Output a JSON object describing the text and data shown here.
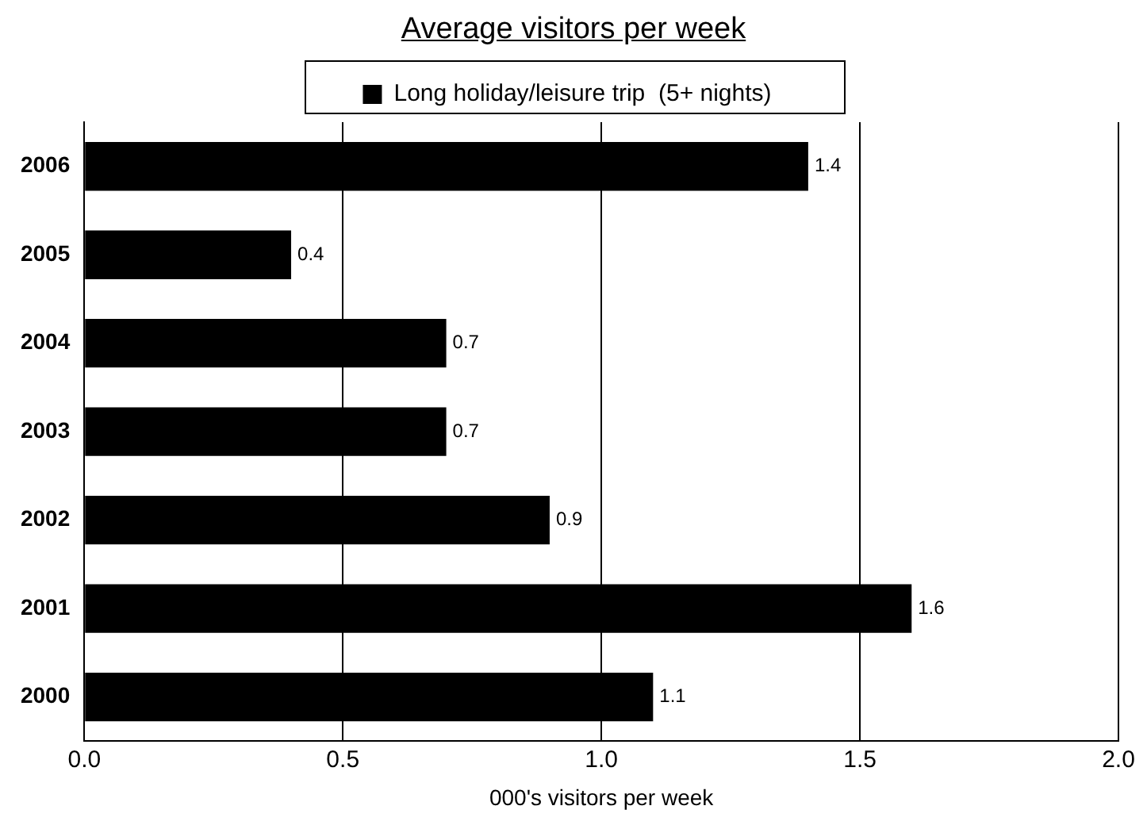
{
  "chart_data": {
    "type": "bar",
    "orientation": "horizontal",
    "title": "Average visitors per week",
    "xlabel": "000's visitors per week",
    "categories": [
      "2006",
      "2005",
      "2004",
      "2003",
      "2002",
      "2001",
      "2000"
    ],
    "series": [
      {
        "name": "Long holiday/leisure trip  (5+ nights)",
        "color": "#000000",
        "values": [
          1.4,
          0.4,
          0.7,
          0.7,
          0.9,
          1.6,
          1.1
        ]
      }
    ],
    "xlim": [
      0,
      2
    ],
    "xticks": [
      {
        "value": 0,
        "label": "0.0"
      },
      {
        "value": 0.5,
        "label": "0.5"
      },
      {
        "value": 1,
        "label": "1.0"
      },
      {
        "value": 1.5,
        "label": "1.5"
      },
      {
        "value": 2,
        "label": "2.0"
      }
    ],
    "grid": "x",
    "legend": "top",
    "data_labels": true
  }
}
